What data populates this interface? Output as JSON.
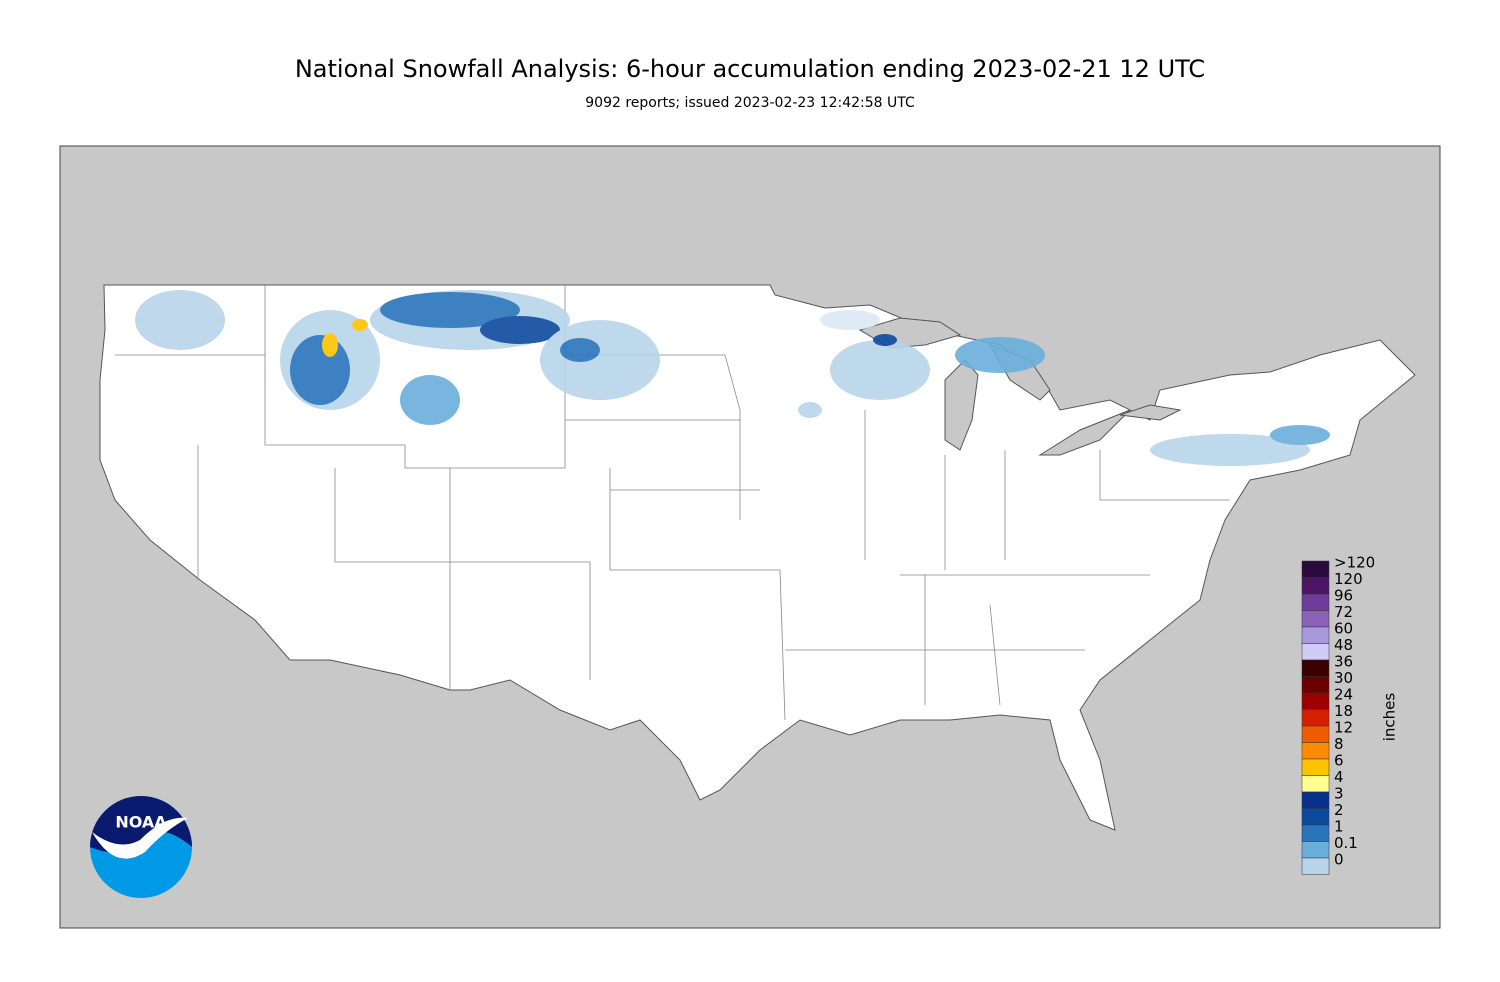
{
  "header": {
    "title": "National Snowfall Analysis: 6-hour accumulation ending 2023-02-21 12 UTC",
    "subtitle": "9092 reports; issued 2023-02-23 12:42:58 UTC"
  },
  "legend": {
    "unit": "inches",
    "items": [
      {
        "label": ">120",
        "color": "#2b0a3d"
      },
      {
        "label": "120",
        "color": "#4b1464"
      },
      {
        "label": "96",
        "color": "#6c3c98"
      },
      {
        "label": "72",
        "color": "#8a62b8"
      },
      {
        "label": "60",
        "color": "#a898dc"
      },
      {
        "label": "48",
        "color": "#d0ccf8"
      },
      {
        "label": "36",
        "color": "#3a0000"
      },
      {
        "label": "30",
        "color": "#6b0000"
      },
      {
        "label": "24",
        "color": "#9c0000"
      },
      {
        "label": "18",
        "color": "#d42000"
      },
      {
        "label": "12",
        "color": "#f05a00"
      },
      {
        "label": "8",
        "color": "#ff8c00"
      },
      {
        "label": "6",
        "color": "#ffc200"
      },
      {
        "label": "4",
        "color": "#ffff90"
      },
      {
        "label": "3",
        "color": "#08308c"
      },
      {
        "label": "2",
        "color": "#0c4aa0"
      },
      {
        "label": "1",
        "color": "#2a74bc"
      },
      {
        "label": "0.1",
        "color": "#6aaedc"
      },
      {
        "label": "0",
        "color": "#b8d4ea"
      }
    ]
  },
  "logo": {
    "text": "NOAA"
  }
}
